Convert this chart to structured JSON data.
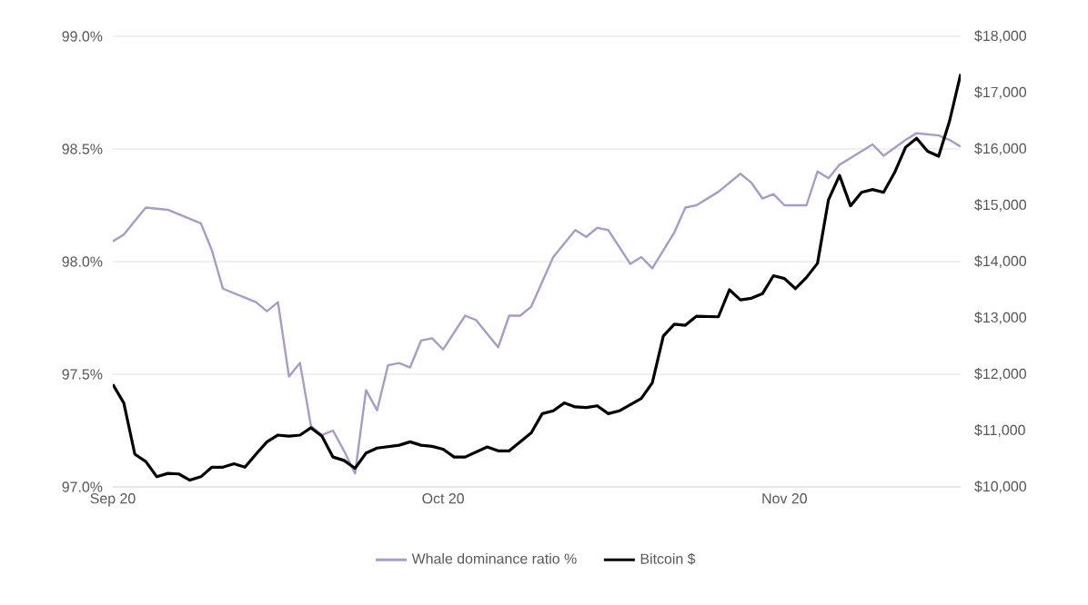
{
  "chart_data": {
    "type": "line",
    "xlim": [
      "2020-09-01",
      "2020-11-17"
    ],
    "xticks": [
      {
        "value": "2020-09-01",
        "label": "Sep 20"
      },
      {
        "value": "2020-10-01",
        "label": "Oct 20"
      },
      {
        "value": "2020-11-01",
        "label": "Nov 20"
      }
    ],
    "ylim": [
      97,
      99
    ],
    "yticks": [
      {
        "value": 97,
        "label": "97.0%"
      },
      {
        "value": 97.5,
        "label": "97.5%"
      },
      {
        "value": 98,
        "label": "98.0%"
      },
      {
        "value": 98.5,
        "label": "98.5%"
      },
      {
        "value": 99,
        "label": "99.0%"
      }
    ],
    "y2lim": [
      10000,
      18000
    ],
    "y2ticks": [
      {
        "value": 10000,
        "label": "$10,000"
      },
      {
        "value": 11000,
        "label": "$11,000"
      },
      {
        "value": 12000,
        "label": "$12,000"
      },
      {
        "value": 13000,
        "label": "$13,000"
      },
      {
        "value": 14000,
        "label": "$14,000"
      },
      {
        "value": 15000,
        "label": "$15,000"
      },
      {
        "value": 16000,
        "label": "$16,000"
      },
      {
        "value": 17000,
        "label": "$17,000"
      },
      {
        "value": 18000,
        "label": "$18,000"
      }
    ],
    "grid": "y",
    "legend": "bottom",
    "series": [
      {
        "name": "Whale dominance ratio %",
        "color": "#a99bc9",
        "x": [
          "2020-09-01",
          "2020-09-02",
          "2020-09-03",
          "2020-09-04",
          "2020-09-06",
          "2020-09-07",
          "2020-09-09",
          "2020-09-10",
          "2020-09-11",
          "2020-09-13",
          "2020-09-14",
          "2020-09-15",
          "2020-09-16",
          "2020-09-17",
          "2020-09-18",
          "2020-09-19",
          "2020-09-20",
          "2020-09-21",
          "2020-09-22",
          "2020-09-23",
          "2020-09-24",
          "2020-09-25",
          "2020-09-26",
          "2020-09-27",
          "2020-09-28",
          "2020-09-29",
          "2020-09-30",
          "2020-10-01",
          "2020-10-03",
          "2020-10-04",
          "2020-10-06",
          "2020-10-07",
          "2020-10-08",
          "2020-10-09",
          "2020-10-11",
          "2020-10-13",
          "2020-10-14",
          "2020-10-15",
          "2020-10-16",
          "2020-10-18",
          "2020-10-19",
          "2020-10-20",
          "2020-10-22",
          "2020-10-23",
          "2020-10-24",
          "2020-10-26",
          "2020-10-28",
          "2020-10-29",
          "2020-10-30",
          "2020-10-31",
          "2020-11-01",
          "2020-11-03",
          "2020-11-04",
          "2020-11-05",
          "2020-11-06",
          "2020-11-07",
          "2020-11-09",
          "2020-11-10",
          "2020-11-12",
          "2020-11-13",
          "2020-11-15",
          "2020-11-16",
          "2020-11-17"
        ],
        "values": [
          98.09,
          98.12,
          98.18,
          98.24,
          98.23,
          98.21,
          98.17,
          98.05,
          97.88,
          97.84,
          97.82,
          97.78,
          97.82,
          97.49,
          97.55,
          97.27,
          97.23,
          97.25,
          97.16,
          97.06,
          97.43,
          97.34,
          97.54,
          97.55,
          97.53,
          97.65,
          97.66,
          97.61,
          97.76,
          97.74,
          97.62,
          97.76,
          97.76,
          97.8,
          98.02,
          98.14,
          98.11,
          98.15,
          98.14,
          97.99,
          98.02,
          97.97,
          98.13,
          98.24,
          98.25,
          98.31,
          98.39,
          98.35,
          98.28,
          98.3,
          98.25,
          98.25,
          98.4,
          98.37,
          98.43,
          98.46,
          98.52,
          98.47,
          98.54,
          98.57,
          98.56,
          98.54,
          98.51
        ]
      },
      {
        "name": "Bitcoin $",
        "color": "#000000",
        "axis": "y2",
        "x": [
          "2020-09-01",
          "2020-09-02",
          "2020-09-03",
          "2020-09-04",
          "2020-09-05",
          "2020-09-06",
          "2020-09-07",
          "2020-09-08",
          "2020-09-09",
          "2020-09-10",
          "2020-09-11",
          "2020-09-12",
          "2020-09-13",
          "2020-09-14",
          "2020-09-15",
          "2020-09-16",
          "2020-09-17",
          "2020-09-18",
          "2020-09-19",
          "2020-09-20",
          "2020-09-21",
          "2020-09-22",
          "2020-09-23",
          "2020-09-24",
          "2020-09-25",
          "2020-09-27",
          "2020-09-28",
          "2020-09-29",
          "2020-09-30",
          "2020-10-01",
          "2020-10-02",
          "2020-10-03",
          "2020-10-05",
          "2020-10-06",
          "2020-10-07",
          "2020-10-09",
          "2020-10-10",
          "2020-10-11",
          "2020-10-12",
          "2020-10-13",
          "2020-10-14",
          "2020-10-15",
          "2020-10-16",
          "2020-10-17",
          "2020-10-19",
          "2020-10-20",
          "2020-10-21",
          "2020-10-22",
          "2020-10-23",
          "2020-10-24",
          "2020-10-26",
          "2020-10-27",
          "2020-10-28",
          "2020-10-29",
          "2020-10-30",
          "2020-10-31",
          "2020-11-01",
          "2020-11-02",
          "2020-11-03",
          "2020-11-04",
          "2020-11-05",
          "2020-11-06",
          "2020-11-07",
          "2020-11-08",
          "2020-11-09",
          "2020-11-10",
          "2020-11-11",
          "2020-11-12",
          "2020-11-13",
          "2020-11-14",
          "2020-11-15",
          "2020-11-16",
          "2020-11-17"
        ],
        "values": [
          11820,
          11490,
          10580,
          10450,
          10180,
          10240,
          10230,
          10120,
          10180,
          10350,
          10350,
          10410,
          10350,
          10580,
          10800,
          10920,
          10900,
          10920,
          11050,
          10900,
          10530,
          10470,
          10330,
          10600,
          10690,
          10740,
          10800,
          10740,
          10720,
          10670,
          10530,
          10530,
          10710,
          10640,
          10640,
          10960,
          11300,
          11350,
          11490,
          11420,
          11410,
          11440,
          11300,
          11350,
          11570,
          11850,
          12680,
          12890,
          12870,
          13030,
          13020,
          13500,
          13320,
          13350,
          13430,
          13750,
          13700,
          13520,
          13720,
          13970,
          15100,
          15530,
          14990,
          15230,
          15280,
          15230,
          15580,
          16030,
          16190,
          15960,
          15870,
          16500,
          17330
        ]
      }
    ]
  }
}
